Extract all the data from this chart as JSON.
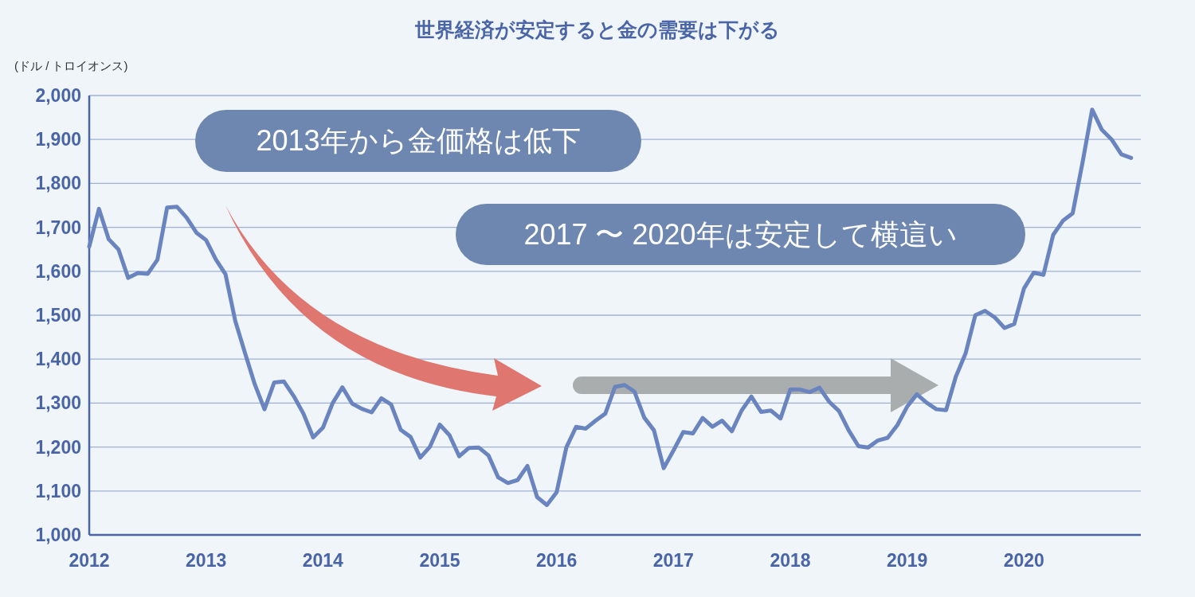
{
  "chart_data": {
    "type": "line",
    "title": "世界経済が安定すると金の需要は下がる",
    "ylabel": "(ドル / トロイオンス)",
    "annotations": [
      "2013年から金価格は低下",
      "2017 〜 2020年は安定して横這い"
    ],
    "x": [
      "2012-01",
      "2012-02",
      "2012-03",
      "2012-04",
      "2012-05",
      "2012-06",
      "2012-07",
      "2012-08",
      "2012-09",
      "2012-10",
      "2012-11",
      "2012-12",
      "2013-01",
      "2013-02",
      "2013-03",
      "2013-04",
      "2013-05",
      "2013-06",
      "2013-07",
      "2013-08",
      "2013-09",
      "2013-10",
      "2013-11",
      "2013-12",
      "2014-01",
      "2014-02",
      "2014-03",
      "2014-04",
      "2014-05",
      "2014-06",
      "2014-07",
      "2014-08",
      "2014-09",
      "2014-10",
      "2014-11",
      "2014-12",
      "2015-01",
      "2015-02",
      "2015-03",
      "2015-04",
      "2015-05",
      "2015-06",
      "2015-07",
      "2015-08",
      "2015-09",
      "2015-10",
      "2015-11",
      "2015-12",
      "2016-01",
      "2016-02",
      "2016-03",
      "2016-04",
      "2016-05",
      "2016-06",
      "2016-07",
      "2016-08",
      "2016-09",
      "2016-10",
      "2016-11",
      "2016-12",
      "2017-01",
      "2017-02",
      "2017-03",
      "2017-04",
      "2017-05",
      "2017-06",
      "2017-07",
      "2017-08",
      "2017-09",
      "2017-10",
      "2017-11",
      "2017-12",
      "2018-01",
      "2018-02",
      "2018-03",
      "2018-04",
      "2018-05",
      "2018-06",
      "2018-07",
      "2018-08",
      "2018-09",
      "2018-10",
      "2018-11",
      "2018-12",
      "2019-01",
      "2019-02",
      "2019-03",
      "2019-04",
      "2019-05",
      "2019-06",
      "2019-07",
      "2019-08",
      "2019-09",
      "2019-10",
      "2019-11",
      "2019-12",
      "2020-01",
      "2020-02",
      "2020-03",
      "2020-04",
      "2020-05",
      "2020-06",
      "2020-07",
      "2020-08",
      "2020-09",
      "2020-10",
      "2020-11",
      "2020-12"
    ],
    "series": [
      {
        "color": "#6a84c0",
        "values": [
          1656,
          1742,
          1673,
          1650,
          1585,
          1596,
          1594,
          1626,
          1745,
          1747,
          1722,
          1688,
          1671,
          1627,
          1593,
          1487,
          1414,
          1343,
          1286,
          1347,
          1349,
          1316,
          1276,
          1222,
          1244,
          1300,
          1336,
          1299,
          1287,
          1279,
          1311,
          1297,
          1239,
          1223,
          1176,
          1201,
          1251,
          1227,
          1179,
          1198,
          1199,
          1181,
          1131,
          1118,
          1125,
          1157,
          1086,
          1068,
          1097,
          1199,
          1246,
          1242,
          1260,
          1276,
          1337,
          1341,
          1326,
          1267,
          1238,
          1152,
          1192,
          1234,
          1231,
          1266,
          1246,
          1260,
          1236,
          1283,
          1315,
          1280,
          1283,
          1265,
          1331,
          1331,
          1325,
          1335,
          1303,
          1282,
          1238,
          1202,
          1199,
          1215,
          1221,
          1250,
          1292,
          1320,
          1301,
          1286,
          1284,
          1360,
          1413,
          1500,
          1510,
          1495,
          1471,
          1480,
          1561,
          1597,
          1592,
          1683,
          1715,
          1732,
          1846,
          1968,
          1922,
          1900,
          1866,
          1858
        ]
      }
    ],
    "xlim": [
      "2012-01",
      "2021-01"
    ],
    "xticks": [
      "2012",
      "2013",
      "2014",
      "2015",
      "2016",
      "2017",
      "2018",
      "2019",
      "2020"
    ],
    "ylim": [
      1000,
      2000
    ],
    "yticks": [
      {
        "value": 1000,
        "label": "1,000"
      },
      {
        "value": 1100,
        "label": "1,100"
      },
      {
        "value": 1200,
        "label": "1,200"
      },
      {
        "value": 1300,
        "label": "1,300"
      },
      {
        "value": 1400,
        "label": "1,400"
      },
      {
        "value": 1500,
        "label": "1,500"
      },
      {
        "value": 1600,
        "label": "1,600"
      },
      {
        "value": 1700,
        "label": "1,700"
      },
      {
        "value": 1800,
        "label": "1,800"
      },
      {
        "value": 1900,
        "label": "1,900"
      },
      {
        "value": 2000,
        "label": "2,000"
      }
    ],
    "grid": "y",
    "marker": "none",
    "line_style": "solid"
  }
}
